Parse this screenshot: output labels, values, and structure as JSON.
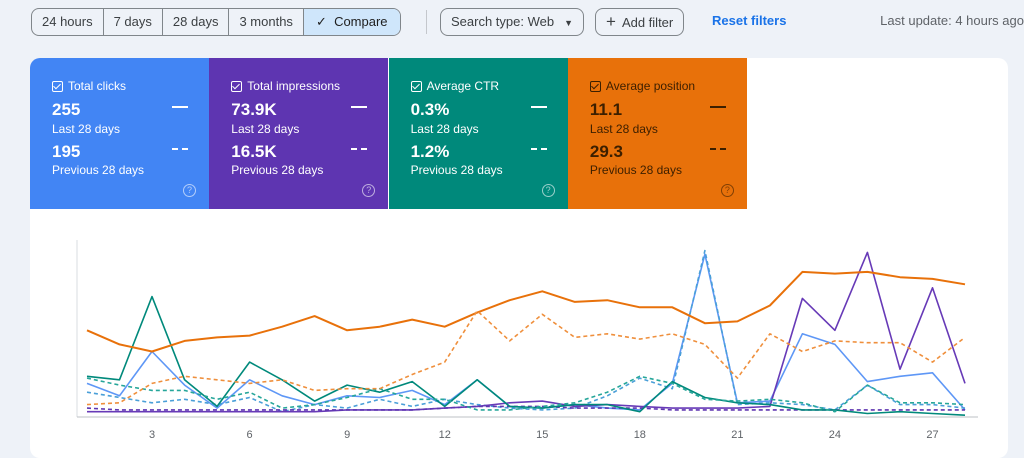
{
  "toolbar": {
    "ranges": [
      "24 hours",
      "7 days",
      "28 days",
      "3 months"
    ],
    "compare_label": "Compare",
    "search_type": "Search type: Web",
    "add_filter": "Add filter",
    "reset_filters": "Reset filters",
    "last_update": "Last update: 4 hours ago"
  },
  "metrics": [
    {
      "label": "Total clicks",
      "current": "255",
      "current_period": "Last 28 days",
      "previous": "195",
      "previous_period": "Previous 28 days",
      "color": "#4285f4",
      "text_color": "#ffffff"
    },
    {
      "label": "Total impressions",
      "current": "73.9K",
      "current_period": "Last 28 days",
      "previous": "16.5K",
      "previous_period": "Previous 28 days",
      "color": "#5e35b1",
      "text_color": "#ffffff"
    },
    {
      "label": "Average CTR",
      "current": "0.3%",
      "current_period": "Last 28 days",
      "previous": "1.2%",
      "previous_period": "Previous 28 days",
      "color": "#00897b",
      "text_color": "#ffffff"
    },
    {
      "label": "Average position",
      "current": "11.1",
      "current_period": "Last 28 days",
      "previous": "29.3",
      "previous_period": "Previous 28 days",
      "color": "#e8710a",
      "text_color": "#3c1f00"
    }
  ],
  "chart_data": {
    "type": "line",
    "x": [
      1,
      2,
      3,
      4,
      5,
      6,
      7,
      8,
      9,
      10,
      11,
      12,
      13,
      14,
      15,
      16,
      17,
      18,
      19,
      20,
      21,
      22,
      23,
      24,
      25,
      26,
      27,
      28
    ],
    "xticks": [
      3,
      6,
      9,
      12,
      15,
      18,
      21,
      24,
      27
    ],
    "ylim": [
      0,
      100
    ],
    "grid": false,
    "series": [
      {
        "metric": "clicks",
        "period": "last",
        "style": "solid",
        "color": "#5e97f6",
        "values": [
          19,
          12,
          37,
          18,
          5,
          21,
          12,
          7,
          12,
          11,
          15,
          7,
          21,
          6,
          5,
          7,
          5,
          4,
          19,
          92,
          8,
          9,
          47,
          41,
          20,
          23,
          25,
          4
        ]
      },
      {
        "metric": "clicks",
        "period": "previous",
        "style": "dashed",
        "color": "#4a9fd8",
        "values": [
          14,
          11,
          8,
          10,
          7,
          11,
          3,
          7,
          5,
          10,
          6,
          10,
          7,
          5,
          4,
          5,
          12,
          22,
          16,
          94,
          7,
          8,
          7,
          4,
          18,
          7,
          7,
          5
        ]
      },
      {
        "metric": "impressions",
        "period": "last",
        "style": "solid",
        "color": "#673ab7",
        "values": [
          3,
          3,
          3,
          3,
          3,
          3,
          3,
          3,
          4,
          4,
          4,
          5,
          6,
          8,
          9,
          6,
          7,
          6,
          5,
          5,
          5,
          6,
          67,
          49,
          93,
          27,
          73,
          19
        ]
      },
      {
        "metric": "impressions",
        "period": "previous",
        "style": "dashed",
        "color": "#5e35b1",
        "values": [
          5,
          4,
          4,
          4,
          4,
          4,
          4,
          4,
          4,
          4,
          4,
          5,
          6,
          6,
          6,
          5,
          5,
          5,
          4,
          4,
          4,
          4,
          4,
          4,
          4,
          4,
          4,
          4
        ]
      },
      {
        "metric": "ctr",
        "period": "last",
        "style": "solid",
        "color": "#00897b",
        "values": [
          23,
          21,
          68,
          21,
          6,
          31,
          21,
          9,
          18,
          14,
          20,
          6,
          21,
          6,
          5,
          7,
          7,
          3,
          20,
          11,
          8,
          7,
          4,
          4,
          2,
          3,
          2,
          1
        ]
      },
      {
        "metric": "ctr",
        "period": "previous",
        "style": "dashed",
        "color": "#26a69a",
        "values": [
          22,
          18,
          15,
          15,
          10,
          14,
          5,
          7,
          11,
          16,
          10,
          10,
          4,
          4,
          6,
          8,
          14,
          23,
          19,
          10,
          9,
          10,
          8,
          3,
          18,
          8,
          8,
          7
        ]
      },
      {
        "metric": "position",
        "period": "last",
        "style": "solid",
        "color": "#e8710a",
        "values": [
          49,
          41,
          37,
          43,
          45,
          46,
          51,
          57,
          49,
          51,
          55,
          51,
          59,
          66,
          71,
          65,
          66,
          62,
          62,
          53,
          54,
          63,
          82,
          81,
          82,
          79,
          78,
          75
        ]
      },
      {
        "metric": "position",
        "period": "previous",
        "style": "dashed",
        "color": "#ef8f3c",
        "values": [
          7,
          8,
          19,
          23,
          21,
          19,
          21,
          15,
          16,
          16,
          24,
          31,
          60,
          43,
          58,
          45,
          47,
          44,
          47,
          41,
          22,
          47,
          37,
          43,
          42,
          42,
          31,
          45
        ]
      }
    ]
  }
}
